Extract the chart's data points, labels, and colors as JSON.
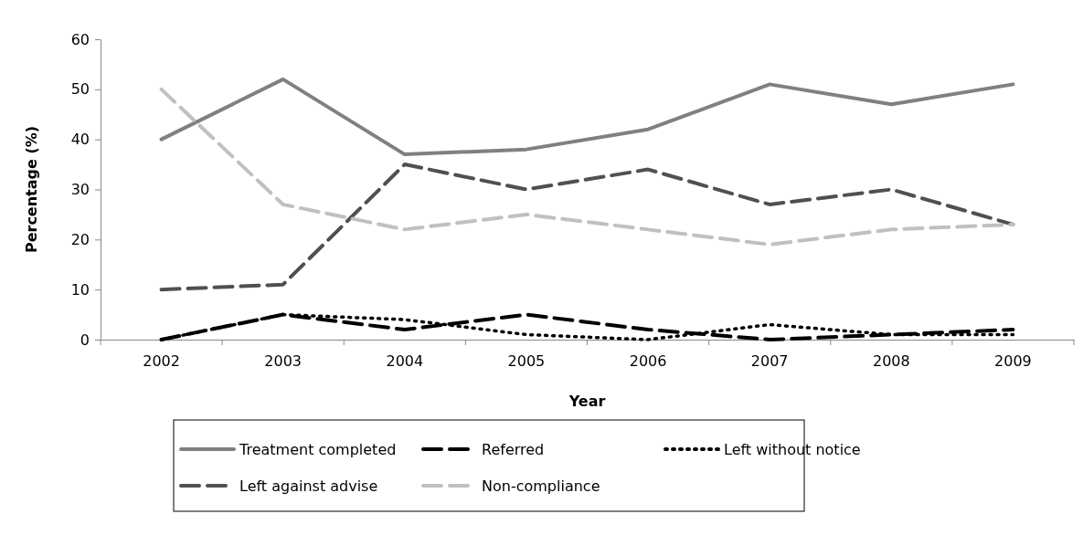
{
  "chart_data": {
    "type": "line",
    "xlabel": "Year",
    "ylabel": "Percentage (%)",
    "categories": [
      "2002",
      "2003",
      "2004",
      "2005",
      "2006",
      "2007",
      "2008",
      "2009"
    ],
    "ylim": [
      0,
      60
    ],
    "yticks": [
      0,
      10,
      20,
      30,
      40,
      50,
      60
    ],
    "grid": false,
    "legend": "bottom",
    "marker": "none",
    "series": [
      {
        "name": "Treatment completed",
        "color": "#808080",
        "line_style": "solid",
        "values": [
          40,
          52,
          37,
          38,
          42,
          51,
          47,
          51
        ]
      },
      {
        "name": "Referred",
        "color": "#000000",
        "line_style": "dashed",
        "values": [
          0,
          5,
          2,
          5,
          2,
          0,
          1,
          2
        ]
      },
      {
        "name": "Left without notice",
        "color": "#000000",
        "line_style": "dotted",
        "values": [
          0,
          5,
          4,
          1,
          0,
          3,
          1,
          1
        ]
      },
      {
        "name": "Left against advise",
        "color": "#505050",
        "line_style": "dashed",
        "values": [
          10,
          11,
          35,
          30,
          34,
          27,
          30,
          23
        ]
      },
      {
        "name": "Non-compliance",
        "color": "#c0c0c0",
        "line_style": "dashed",
        "values": [
          50,
          27,
          22,
          25,
          22,
          19,
          22,
          23
        ]
      }
    ]
  }
}
